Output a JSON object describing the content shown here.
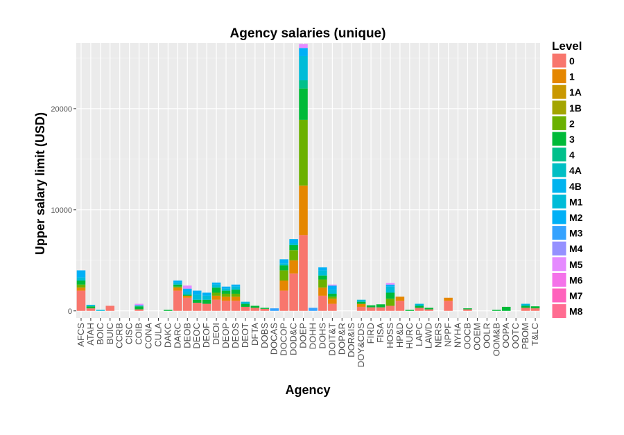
{
  "chart_data": {
    "type": "bar",
    "stacked": true,
    "title": "Agency salaries (unique)",
    "xlabel": "Agency",
    "ylabel": "Upper salary limit (USD)",
    "ylim": [
      -700,
      26500
    ],
    "yticks": [
      0,
      10000,
      20000
    ],
    "ytick_labels": [
      "0",
      "10000",
      "20000"
    ],
    "grid": true,
    "legend_title": "Level",
    "legend_position": "right",
    "categories": [
      "AFCS",
      "ATAH",
      "BOIC",
      "BUIC",
      "CCRB",
      "CISC",
      "COIB",
      "CONA",
      "CULA",
      "DAKC",
      "DARC",
      "DEOB",
      "DEOC",
      "DEOF",
      "DEOI",
      "DEOP",
      "DEOS",
      "DEOT",
      "DFTA",
      "DOBS",
      "DOCAS",
      "DOCOP",
      "DOD&C",
      "DOEP",
      "DOHH",
      "DOHS",
      "DOIT&T",
      "DOP&R",
      "DOR&IS",
      "DOY&CDS",
      "FIRD",
      "FISA",
      "HOSS",
      "HP&D",
      "HURC",
      "LAPC",
      "LAWD",
      "NERS",
      "NPPF",
      "NYHA",
      "OOCB",
      "OOEM",
      "OOLR",
      "OOM&B",
      "OOPA",
      "OOTC",
      "PBOM",
      "T&LC"
    ],
    "series": [
      {
        "name": "0",
        "color": "#F8766D",
        "values": [
          2000,
          250,
          0,
          500,
          0,
          0,
          150,
          0,
          0,
          0,
          2000,
          1300,
          800,
          700,
          1100,
          1000,
          1000,
          400,
          300,
          200,
          0,
          2000,
          3700,
          7500,
          0,
          1500,
          700,
          0,
          0,
          400,
          350,
          350,
          500,
          1000,
          0,
          300,
          150,
          0,
          1000,
          0,
          150,
          0,
          0,
          0,
          0,
          0,
          300,
          250
        ]
      },
      {
        "name": "1",
        "color": "#E58700",
        "values": [
          300,
          0,
          0,
          0,
          0,
          0,
          0,
          0,
          0,
          0,
          300,
          200,
          0,
          0,
          400,
          400,
          400,
          0,
          0,
          0,
          0,
          1000,
          1300,
          4900,
          0,
          800,
          500,
          0,
          0,
          300,
          0,
          0,
          0,
          400,
          0,
          0,
          0,
          0,
          300,
          0,
          0,
          0,
          0,
          0,
          0,
          0,
          0,
          0
        ]
      },
      {
        "name": "1A",
        "color": "#C99800",
        "values": [
          0,
          0,
          0,
          0,
          0,
          0,
          0,
          0,
          0,
          0,
          0,
          0,
          0,
          0,
          0,
          0,
          0,
          0,
          0,
          0,
          0,
          0,
          0,
          0,
          0,
          0,
          0,
          0,
          0,
          0,
          0,
          0,
          0,
          0,
          0,
          0,
          0,
          0,
          0,
          0,
          0,
          0,
          0,
          0,
          0,
          0,
          0,
          0
        ]
      },
      {
        "name": "1B",
        "color": "#A3A500",
        "values": [
          0,
          0,
          0,
          0,
          0,
          0,
          0,
          0,
          0,
          0,
          0,
          0,
          0,
          0,
          0,
          0,
          0,
          0,
          0,
          0,
          0,
          0,
          0,
          0,
          0,
          0,
          0,
          0,
          0,
          0,
          0,
          0,
          0,
          0,
          0,
          0,
          0,
          0,
          0,
          0,
          0,
          0,
          0,
          0,
          0,
          0,
          0,
          0
        ]
      },
      {
        "name": "2",
        "color": "#6BB100",
        "values": [
          300,
          0,
          0,
          0,
          0,
          0,
          0,
          0,
          0,
          0,
          100,
          0,
          0,
          0,
          300,
          300,
          300,
          0,
          0,
          0,
          0,
          1000,
          1000,
          6500,
          0,
          800,
          200,
          0,
          0,
          0,
          0,
          0,
          700,
          0,
          0,
          0,
          0,
          0,
          0,
          0,
          0,
          0,
          0,
          0,
          0,
          0,
          0,
          0
        ]
      },
      {
        "name": "3",
        "color": "#00BA38",
        "values": [
          400,
          200,
          0,
          0,
          0,
          0,
          300,
          0,
          0,
          100,
          200,
          100,
          300,
          400,
          500,
          300,
          400,
          300,
          200,
          100,
          0,
          500,
          500,
          3100,
          0,
          400,
          300,
          0,
          0,
          200,
          200,
          300,
          600,
          0,
          100,
          200,
          150,
          0,
          0,
          0,
          100,
          0,
          0,
          100,
          400,
          0,
          200,
          200
        ]
      },
      {
        "name": "4",
        "color": "#00C08B",
        "values": [
          0,
          0,
          0,
          0,
          0,
          0,
          0,
          0,
          0,
          0,
          0,
          0,
          0,
          0,
          0,
          0,
          0,
          0,
          0,
          0,
          0,
          0,
          0,
          800,
          0,
          0,
          0,
          0,
          0,
          0,
          0,
          0,
          0,
          0,
          0,
          0,
          0,
          0,
          0,
          0,
          0,
          0,
          0,
          0,
          0,
          0,
          0,
          0
        ]
      },
      {
        "name": "4A",
        "color": "#00BFC4",
        "values": [
          0,
          0,
          0,
          0,
          0,
          0,
          0,
          0,
          0,
          0,
          0,
          0,
          0,
          0,
          0,
          0,
          0,
          0,
          0,
          0,
          0,
          0,
          0,
          0,
          0,
          0,
          0,
          0,
          0,
          0,
          0,
          0,
          0,
          0,
          0,
          0,
          0,
          0,
          0,
          0,
          0,
          0,
          0,
          0,
          0,
          0,
          0,
          0
        ]
      },
      {
        "name": "4B",
        "color": "#00B4EF",
        "values": [
          0,
          0,
          0,
          0,
          0,
          0,
          0,
          0,
          0,
          0,
          0,
          0,
          0,
          0,
          0,
          0,
          0,
          0,
          0,
          0,
          0,
          0,
          0,
          0,
          0,
          0,
          0,
          0,
          0,
          0,
          0,
          0,
          0,
          0,
          0,
          0,
          0,
          0,
          0,
          0,
          0,
          0,
          0,
          0,
          0,
          0,
          0,
          0
        ]
      },
      {
        "name": "M1",
        "color": "#00BCD8",
        "values": [
          300,
          150,
          100,
          0,
          0,
          0,
          100,
          0,
          0,
          0,
          200,
          300,
          500,
          400,
          300,
          200,
          300,
          200,
          0,
          0,
          0,
          200,
          200,
          2400,
          0,
          500,
          400,
          0,
          0,
          200,
          0,
          0,
          600,
          0,
          0,
          200,
          0,
          0,
          0,
          0,
          0,
          0,
          0,
          0,
          0,
          0,
          200,
          0
        ]
      },
      {
        "name": "M2",
        "color": "#00B0F6",
        "values": [
          700,
          0,
          0,
          0,
          0,
          0,
          0,
          0,
          0,
          0,
          200,
          300,
          400,
          300,
          200,
          200,
          200,
          0,
          0,
          0,
          0,
          400,
          400,
          800,
          0,
          300,
          400,
          0,
          0,
          0,
          0,
          0,
          200,
          0,
          0,
          0,
          0,
          0,
          0,
          0,
          0,
          0,
          0,
          0,
          0,
          0,
          0,
          0
        ]
      },
      {
        "name": "M3",
        "color": "#35A2FF",
        "values": [
          0,
          0,
          0,
          0,
          0,
          0,
          0,
          0,
          0,
          0,
          0,
          0,
          0,
          0,
          0,
          0,
          0,
          0,
          0,
          0,
          250,
          0,
          0,
          0,
          300,
          0,
          0,
          0,
          0,
          0,
          0,
          0,
          0,
          0,
          0,
          0,
          0,
          0,
          0,
          0,
          0,
          0,
          0,
          0,
          0,
          0,
          0,
          0
        ]
      },
      {
        "name": "M4",
        "color": "#9590FF",
        "values": [
          0,
          0,
          0,
          0,
          0,
          0,
          0,
          0,
          0,
          0,
          0,
          0,
          0,
          0,
          0,
          0,
          0,
          0,
          0,
          0,
          0,
          0,
          0,
          0,
          0,
          0,
          0,
          0,
          0,
          0,
          0,
          0,
          0,
          0,
          0,
          0,
          0,
          0,
          0,
          0,
          0,
          0,
          0,
          0,
          0,
          0,
          0,
          0
        ]
      },
      {
        "name": "M5",
        "color": "#E58AFF",
        "values": [
          0,
          0,
          0,
          0,
          0,
          0,
          150,
          0,
          0,
          0,
          0,
          300,
          0,
          0,
          0,
          0,
          0,
          0,
          0,
          0,
          0,
          0,
          0,
          400,
          0,
          0,
          100,
          0,
          0,
          0,
          0,
          0,
          150,
          0,
          0,
          0,
          0,
          0,
          0,
          0,
          0,
          0,
          0,
          0,
          0,
          0,
          0,
          0
        ]
      },
      {
        "name": "M6",
        "color": "#F472E9",
        "values": [
          0,
          0,
          0,
          0,
          0,
          0,
          0,
          0,
          0,
          0,
          0,
          0,
          0,
          0,
          0,
          0,
          0,
          0,
          0,
          0,
          0,
          0,
          0,
          0,
          0,
          0,
          0,
          0,
          0,
          0,
          0,
          0,
          0,
          0,
          0,
          0,
          0,
          0,
          0,
          0,
          0,
          0,
          0,
          0,
          0,
          0,
          0,
          0
        ]
      },
      {
        "name": "M7",
        "color": "#FF62BC",
        "values": [
          0,
          0,
          0,
          0,
          0,
          0,
          0,
          0,
          0,
          0,
          0,
          0,
          0,
          0,
          0,
          0,
          0,
          0,
          0,
          0,
          0,
          0,
          0,
          0,
          0,
          0,
          0,
          0,
          0,
          0,
          0,
          0,
          0,
          0,
          0,
          0,
          0,
          0,
          0,
          0,
          0,
          0,
          0,
          0,
          0,
          0,
          0,
          0
        ]
      },
      {
        "name": "M8",
        "color": "#FF6C91",
        "values": [
          0,
          0,
          0,
          0,
          0,
          0,
          0,
          0,
          0,
          0,
          0,
          0,
          0,
          0,
          0,
          0,
          0,
          0,
          0,
          0,
          0,
          0,
          0,
          0,
          0,
          0,
          0,
          0,
          0,
          0,
          0,
          0,
          0,
          0,
          0,
          0,
          0,
          0,
          0,
          0,
          0,
          0,
          0,
          0,
          0,
          0,
          0,
          0
        ]
      }
    ]
  },
  "colors": {
    "panel_background": "#EBEBEB",
    "grid_major": "#FFFFFF",
    "grid_minor": "#F5F5F5"
  }
}
